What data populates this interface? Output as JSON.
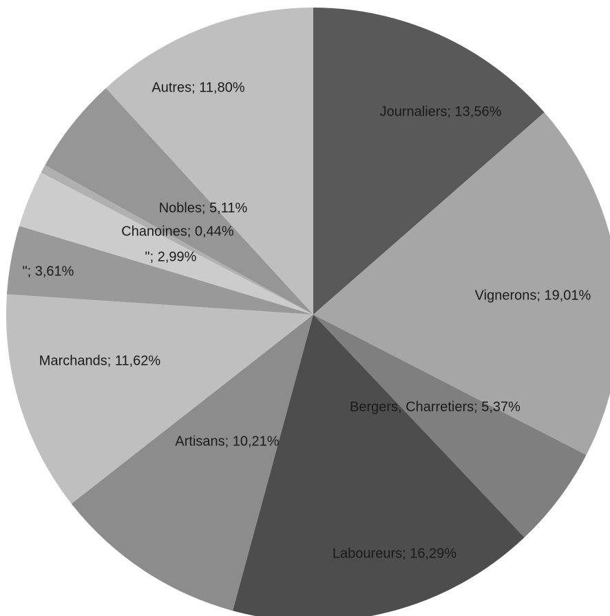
{
  "chart_data": {
    "type": "pie",
    "values": [
      13.56,
      19.01,
      5.37,
      16.29,
      10.21,
      11.62,
      3.61,
      2.99,
      0.44,
      5.11,
      11.8
    ],
    "value_labels": [
      "Journaliers; 13,56%",
      "Vignerons; 19,01%",
      "Bergers, Charretiers; 5,37%",
      "Laboureurs; 16,29%",
      "Artisans; 10,21%",
      "Marchands; 11,62%",
      "\"; 3,61%",
      "\"; 2,99%",
      "Chanoines; 0,44%",
      "Nobles; 5,11%",
      "Autres; 11,80%"
    ],
    "colors": [
      "#595959",
      "#a6a6a6",
      "#7f7f7f",
      "#4d4d4d",
      "#8c8c8c",
      "#bfbfbf",
      "#999999",
      "#cccccc",
      "#b0b0b0",
      "#969696",
      "#bfbfbf"
    ]
  }
}
